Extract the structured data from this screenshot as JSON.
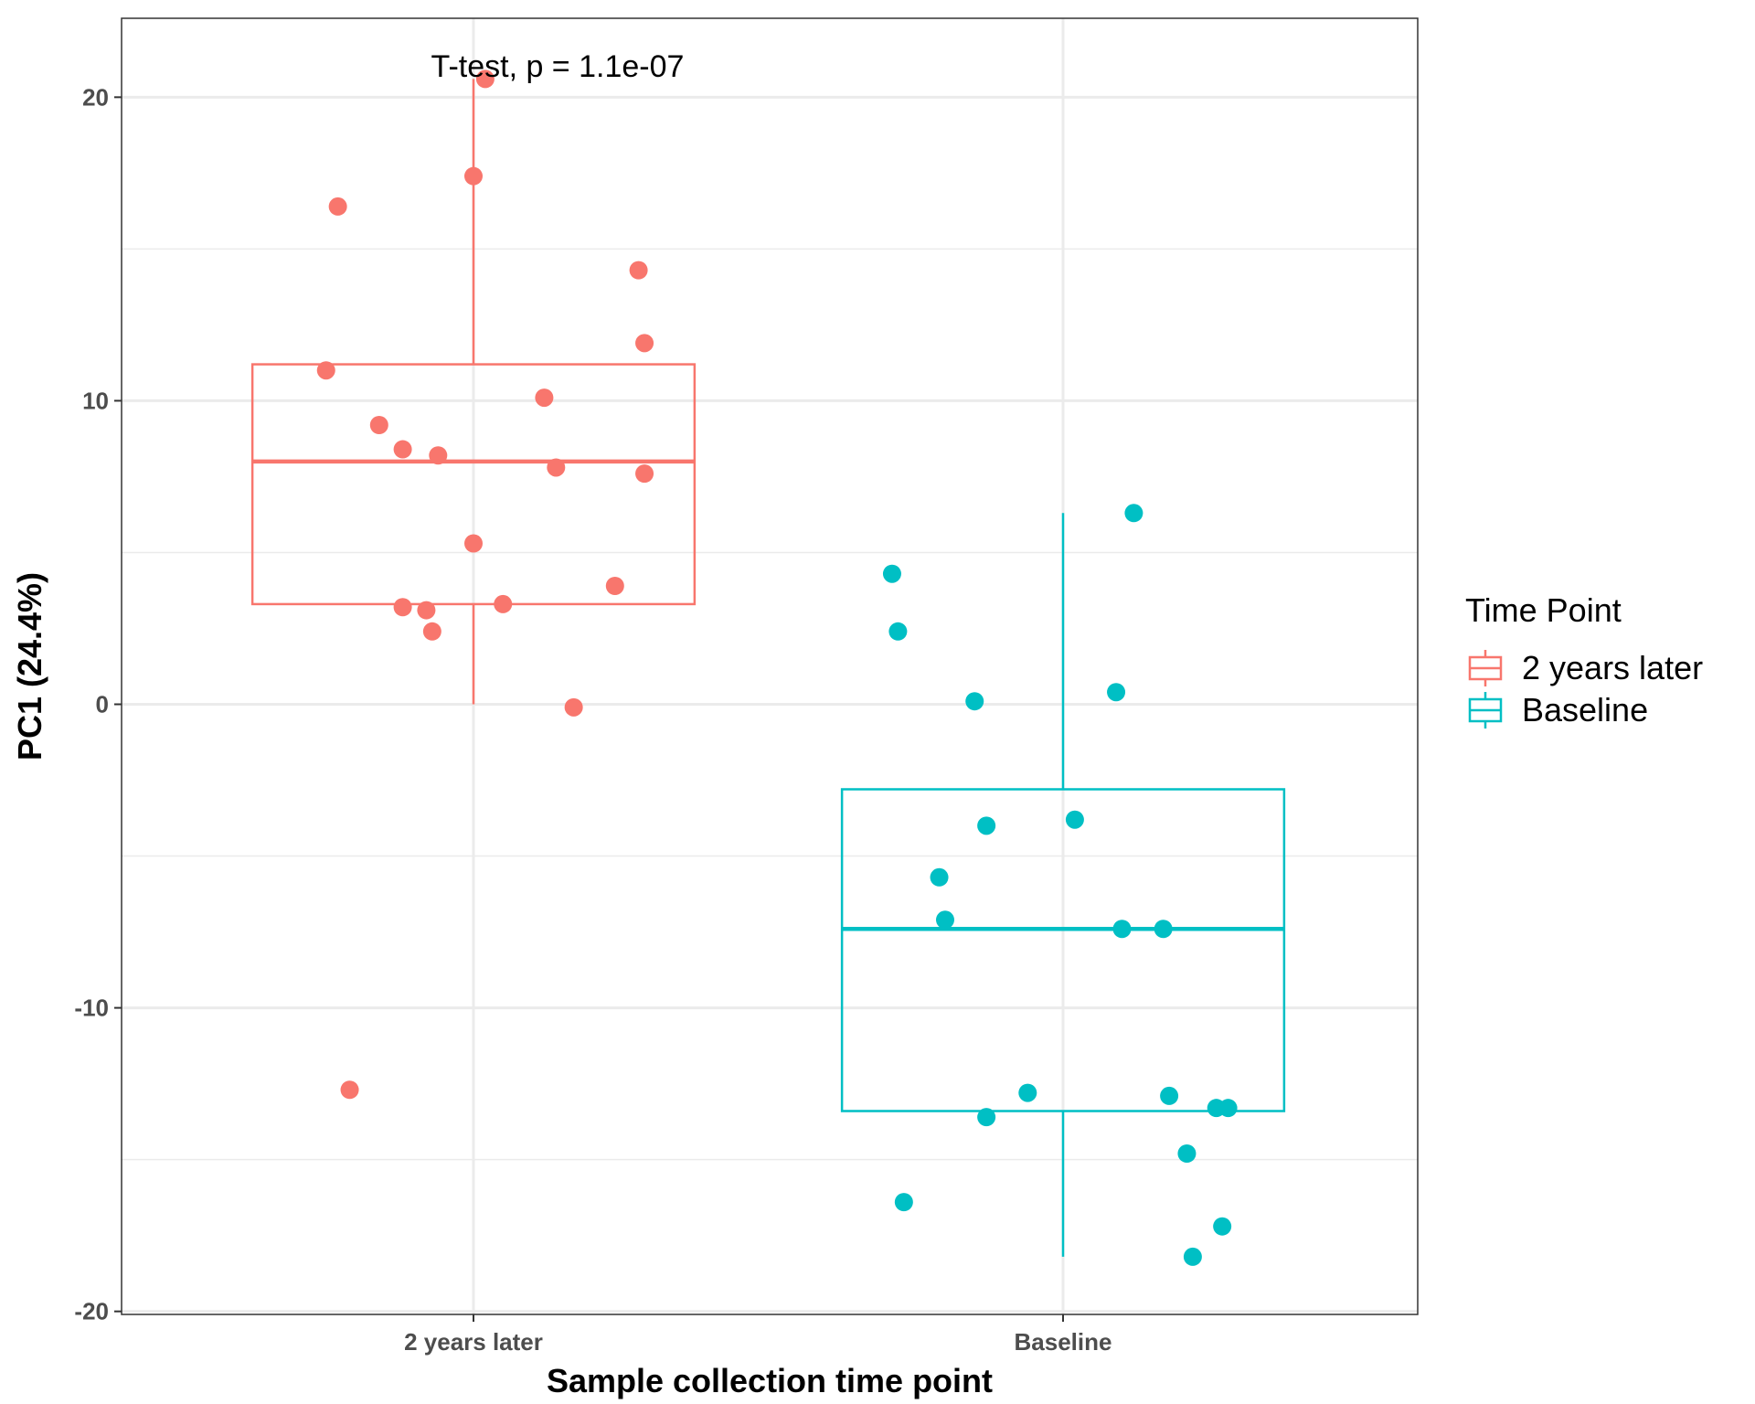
{
  "chart_data": {
    "type": "boxplot",
    "xlabel": "Sample collection time point",
    "ylabel": "PC1 (24.4%)",
    "categories": [
      "2 years later",
      "Baseline"
    ],
    "ylim": [
      -20.1,
      22.6
    ],
    "yticks": [
      -20,
      -10,
      0,
      10,
      20
    ],
    "y_tick_labels": [
      "-20",
      "-10",
      "0",
      "10",
      "20"
    ],
    "grid": true,
    "annotation": "T-test, p = 1.1e-07",
    "legend": {
      "title": "Time Point",
      "placement": "right",
      "entries": [
        "2 years later",
        "Baseline"
      ]
    },
    "colors": {
      "2 years later": "#F8766D",
      "Baseline": "#00BFC4"
    },
    "series": [
      {
        "category": "2 years later",
        "box": {
          "lower_whisker": 0.0,
          "q1": 3.3,
          "median": 8.0,
          "q3": 11.2,
          "upper_whisker": 20.6
        },
        "points": [
          {
            "x_offset": 0.02,
            "y": 20.6
          },
          {
            "x_offset": 0.0,
            "y": 17.4
          },
          {
            "x_offset": -0.23,
            "y": 16.4
          },
          {
            "x_offset": 0.28,
            "y": 14.3
          },
          {
            "x_offset": 0.29,
            "y": 11.9
          },
          {
            "x_offset": -0.25,
            "y": 11.0
          },
          {
            "x_offset": 0.12,
            "y": 10.1
          },
          {
            "x_offset": -0.16,
            "y": 9.2
          },
          {
            "x_offset": -0.12,
            "y": 8.4
          },
          {
            "x_offset": -0.06,
            "y": 8.2
          },
          {
            "x_offset": 0.14,
            "y": 7.8
          },
          {
            "x_offset": 0.29,
            "y": 7.6
          },
          {
            "x_offset": 0.0,
            "y": 5.3
          },
          {
            "x_offset": 0.24,
            "y": 3.9
          },
          {
            "x_offset": 0.05,
            "y": 3.3
          },
          {
            "x_offset": -0.12,
            "y": 3.2
          },
          {
            "x_offset": -0.08,
            "y": 3.1
          },
          {
            "x_offset": -0.07,
            "y": 2.4
          },
          {
            "x_offset": 0.17,
            "y": -0.1
          },
          {
            "x_offset": -0.21,
            "y": -12.7
          }
        ]
      },
      {
        "category": "Baseline",
        "box": {
          "lower_whisker": -18.2,
          "q1": -13.4,
          "median": -7.4,
          "q3": -2.8,
          "upper_whisker": 6.3
        },
        "points": [
          {
            "x_offset": 0.12,
            "y": 6.3
          },
          {
            "x_offset": -0.29,
            "y": 4.3
          },
          {
            "x_offset": -0.28,
            "y": 2.4
          },
          {
            "x_offset": 0.09,
            "y": 0.4
          },
          {
            "x_offset": -0.15,
            "y": 0.1
          },
          {
            "x_offset": 0.02,
            "y": -3.8
          },
          {
            "x_offset": -0.13,
            "y": -4.0
          },
          {
            "x_offset": -0.21,
            "y": -5.7
          },
          {
            "x_offset": -0.2,
            "y": -7.1
          },
          {
            "x_offset": 0.1,
            "y": -7.4
          },
          {
            "x_offset": 0.17,
            "y": -7.4
          },
          {
            "x_offset": -0.06,
            "y": -12.8
          },
          {
            "x_offset": 0.18,
            "y": -12.9
          },
          {
            "x_offset": 0.26,
            "y": -13.3
          },
          {
            "x_offset": 0.28,
            "y": -13.3
          },
          {
            "x_offset": -0.13,
            "y": -13.6
          },
          {
            "x_offset": 0.21,
            "y": -14.8
          },
          {
            "x_offset": -0.27,
            "y": -16.4
          },
          {
            "x_offset": 0.27,
            "y": -17.2
          },
          {
            "x_offset": 0.22,
            "y": -18.2
          }
        ]
      }
    ]
  }
}
